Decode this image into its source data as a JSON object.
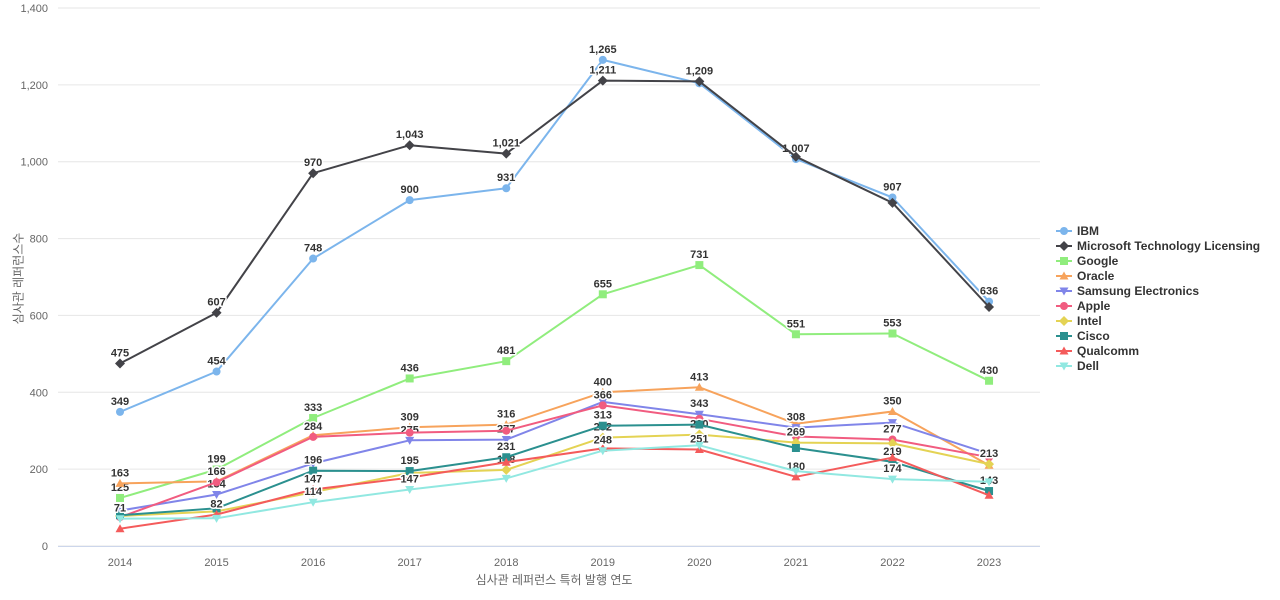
{
  "chart_data": {
    "type": "line",
    "title": "",
    "xlabel": "심사관 레퍼런스 특허 발행 연도",
    "ylabel": "심사관 레퍼런스수",
    "x": [
      2014,
      2015,
      2016,
      2017,
      2018,
      2019,
      2020,
      2021,
      2022,
      2023
    ],
    "ylim": [
      0,
      1400
    ],
    "yticks": [
      0,
      200,
      400,
      600,
      800,
      1000,
      1200,
      1400
    ],
    "grid": true,
    "legend_position": "right",
    "colors": {
      "grid": "#e6e6e6",
      "axis_line": "#ccd6eb",
      "tick_text": "#666666",
      "label_text": "#333333"
    },
    "series": [
      {
        "name": "IBM",
        "color": "#7cb5ec",
        "symbol": "circle",
        "values": [
          349,
          454,
          748,
          900,
          931,
          1265,
          1204,
          1007,
          907,
          636
        ],
        "labeled": [
          true,
          true,
          true,
          true,
          true,
          true,
          false,
          true,
          true,
          true
        ]
      },
      {
        "name": "Microsoft Technology Licensing",
        "color": "#434348",
        "symbol": "diamond",
        "values": [
          475,
          607,
          970,
          1043,
          1021,
          1211,
          1209,
          1013,
          893,
          622
        ],
        "labeled": [
          true,
          true,
          true,
          true,
          true,
          true,
          true,
          false,
          false,
          false
        ]
      },
      {
        "name": "Google",
        "color": "#90ed7d",
        "symbol": "square",
        "values": [
          125,
          199,
          333,
          436,
          481,
          655,
          731,
          551,
          553,
          430
        ],
        "labeled": [
          true,
          true,
          true,
          true,
          true,
          true,
          true,
          true,
          true,
          true
        ]
      },
      {
        "name": "Oracle",
        "color": "#f7a35c",
        "symbol": "triangle",
        "values": [
          163,
          168,
          288,
          309,
          316,
          400,
          413,
          318,
          350,
          210
        ],
        "labeled": [
          true,
          false,
          false,
          true,
          true,
          true,
          true,
          false,
          true,
          false
        ]
      },
      {
        "name": "Samsung Electronics",
        "color": "#8085e9",
        "symbol": "triangle-down",
        "values": [
          92,
          134,
          215,
          275,
          277,
          375,
          343,
          308,
          321,
          240
        ],
        "labeled": [
          false,
          true,
          false,
          true,
          true,
          false,
          true,
          true,
          false,
          false
        ]
      },
      {
        "name": "Apple",
        "color": "#f15c80",
        "symbol": "circle",
        "values": [
          75,
          166,
          284,
          295,
          300,
          366,
          331,
          285,
          277,
          231
        ],
        "labeled": [
          false,
          true,
          true,
          false,
          false,
          true,
          false,
          false,
          true,
          false
        ]
      },
      {
        "name": "Intel",
        "color": "#e4d354",
        "symbol": "diamond",
        "values": [
          78,
          90,
          140,
          190,
          198,
          282,
          290,
          269,
          267,
          213
        ],
        "labeled": [
          false,
          false,
          false,
          false,
          true,
          true,
          true,
          true,
          false,
          true
        ]
      },
      {
        "name": "Cisco",
        "color": "#2b908f",
        "symbol": "square",
        "values": [
          80,
          98,
          196,
          195,
          231,
          313,
          316,
          255,
          219,
          143
        ],
        "labeled": [
          false,
          false,
          true,
          true,
          true,
          true,
          false,
          false,
          true,
          true
        ]
      },
      {
        "name": "Qualcomm",
        "color": "#f45b5b",
        "symbol": "triangle",
        "values": [
          45,
          82,
          147,
          178,
          218,
          254,
          251,
          180,
          230,
          132
        ],
        "labeled": [
          false,
          true,
          true,
          false,
          false,
          false,
          true,
          true,
          false,
          false
        ]
      },
      {
        "name": "Dell",
        "color": "#91e8e1",
        "symbol": "triangle-down",
        "values": [
          71,
          72,
          114,
          147,
          176,
          248,
          262,
          195,
          174,
          167
        ],
        "labeled": [
          true,
          false,
          true,
          true,
          false,
          true,
          false,
          false,
          true,
          false
        ]
      }
    ]
  }
}
